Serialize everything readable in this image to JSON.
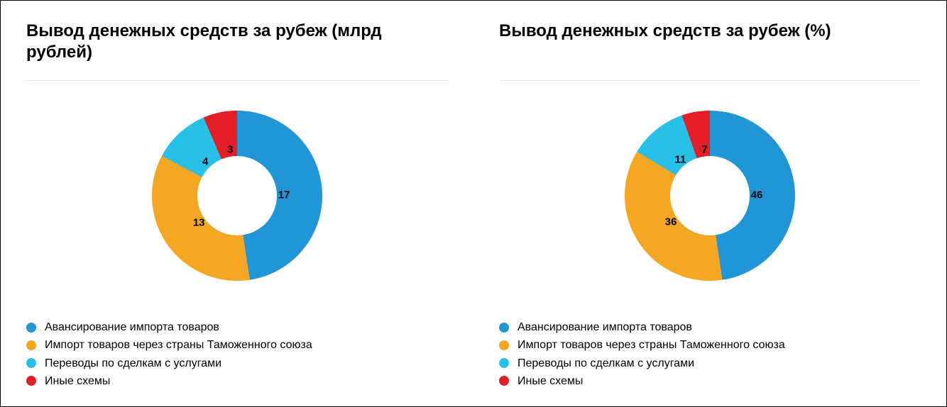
{
  "background_color": "#ffffff",
  "border_color": "#000000",
  "divider_color": "#e5e5e5",
  "text_color": "#000000",
  "title_fontsize": 24,
  "label_fontsize": 15,
  "legend_fontsize": 16,
  "donut_outer_radius": 120,
  "donut_inner_radius": 56,
  "label_radius": 66,
  "panels": [
    {
      "title": "Вывод денежных средств за рубеж (млрд рублей)",
      "type": "donut",
      "start_angle_deg": 6,
      "series": [
        {
          "label": "Авансирование импорта товаров",
          "value": 17,
          "color": "#2196d6"
        },
        {
          "label": "Импорт товаров через страны Таможенного союза",
          "value": 13,
          "color": "#f5a623"
        },
        {
          "label": "Переводы по сделкам с услугами",
          "value": 4,
          "color": "#29c0e7"
        },
        {
          "label": "Иные схемы",
          "value": 3,
          "color": "#e41e26"
        }
      ]
    },
    {
      "title": "Вывод денежных средств за рубеж (%)",
      "type": "donut",
      "start_angle_deg": 6,
      "series": [
        {
          "label": "Авансирование импорта товаров",
          "value": 46,
          "color": "#2196d6"
        },
        {
          "label": "Импорт товаров через страны Таможенного союза",
          "value": 36,
          "color": "#f5a623"
        },
        {
          "label": "Переводы по сделкам с услугами",
          "value": 11,
          "color": "#29c0e7"
        },
        {
          "label": "Иные схемы",
          "value": 7,
          "color": "#e41e26"
        }
      ]
    }
  ]
}
